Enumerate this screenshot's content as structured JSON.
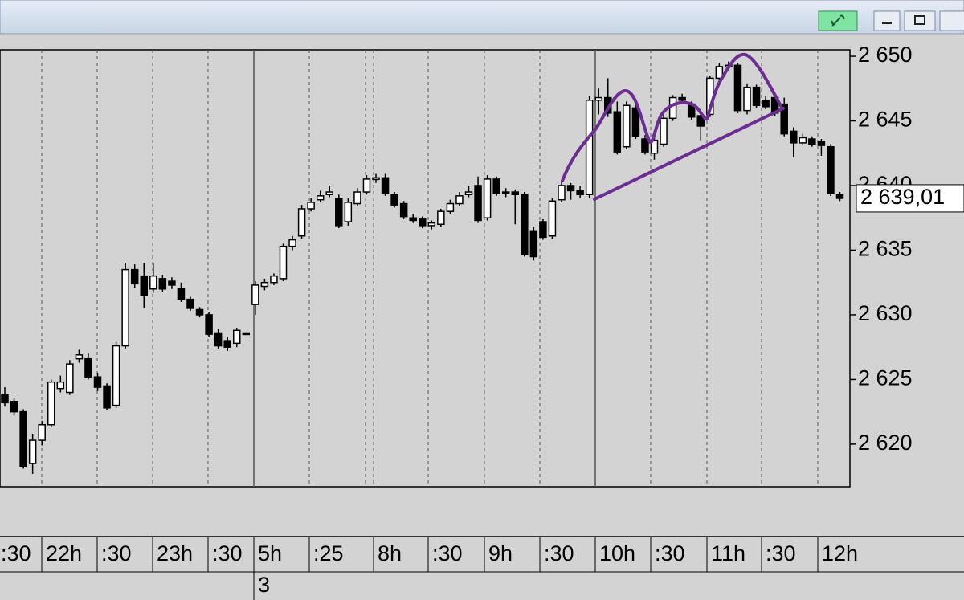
{
  "chart_data": {
    "type": "candlestick",
    "open": [
      2623.8,
      2623.3,
      2622.5,
      2618.5,
      2620.3,
      2621.5,
      2624.3,
      2624.0,
      2626.6,
      2626.6,
      2625.2,
      2624.5,
      2623.0,
      2627.6,
      2633.5,
      2633.0,
      2632.0,
      2632.8,
      2632.6,
      2632.0,
      2631.2,
      2630.4,
      2630.0,
      2628.6,
      2628.0,
      2627.8,
      2628.6,
      2630.8,
      2632.2,
      2632.5,
      2632.8,
      2635.3,
      2636.1,
      2638.2,
      2638.9,
      2639.3,
      2639.0,
      2637.2,
      2638.6,
      2639.5,
      2640.5,
      2640.6,
      2639.3,
      2638.6,
      2637.5,
      2637.4,
      2636.9,
      2637.0,
      2638.0,
      2638.6,
      2639.3,
      2640.0,
      2637.5,
      2640.5,
      2639.5,
      2639.5,
      2639.3,
      2636.5,
      2637.2,
      2636.1,
      2638.9,
      2640.0,
      2639.6,
      2639.3,
      2646.6,
      2646.8,
      2645.7,
      2643.0,
      2646.0,
      2643.6,
      2642.5,
      2643.2,
      2645.2,
      2646.8,
      2646.3,
      2645.4,
      2645.5,
      2648.3,
      2649.2,
      2649.3,
      2645.8,
      2647.6,
      2646.6,
      2646.8,
      2646.3,
      2644.2,
      2643.3,
      2643.6,
      2643.4,
      2643.0,
      2639.3
    ],
    "high": [
      2624.4,
      2623.6,
      2622.7,
      2620.8,
      2621.8,
      2625.0,
      2625.3,
      2626.5,
      2627.3,
      2627.0,
      2625.5,
      2624.7,
      2627.9,
      2634.0,
      2633.9,
      2634.0,
      2634.0,
      2633.1,
      2632.9,
      2632.5,
      2631.4,
      2630.6,
      2630.2,
      2628.9,
      2628.3,
      2629.0,
      2628.6,
      2632.6,
      2632.8,
      2633.2,
      2635.5,
      2636.1,
      2638.5,
      2639.0,
      2639.6,
      2640.0,
      2639.3,
      2639.0,
      2639.8,
      2640.8,
      2640.9,
      2640.9,
      2639.5,
      2638.8,
      2637.8,
      2637.6,
      2637.3,
      2638.2,
      2638.9,
      2639.5,
      2640.0,
      2640.7,
      2640.8,
      2640.7,
      2639.8,
      2639.7,
      2639.5,
      2636.8,
      2637.4,
      2639.0,
      2640.3,
      2640.2,
      2640.0,
      2646.9,
      2647.5,
      2648.3,
      2646.5,
      2646.5,
      2646.3,
      2643.9,
      2643.7,
      2645.5,
      2647.0,
      2647.1,
      2646.5,
      2645.6,
      2648.5,
      2649.5,
      2649.6,
      2649.5,
      2647.9,
      2647.8,
      2646.9,
      2647.0,
      2646.8,
      2644.5,
      2644.0,
      2643.8,
      2643.6,
      2643.2,
      2639.5
    ],
    "low": [
      2622.9,
      2622.2,
      2618.1,
      2617.7,
      2619.9,
      2621.3,
      2624.0,
      2623.8,
      2626.3,
      2625.0,
      2624.1,
      2622.6,
      2622.8,
      2627.4,
      2632.1,
      2630.5,
      2631.7,
      2631.8,
      2632.0,
      2631.0,
      2630.3,
      2629.8,
      2628.3,
      2627.4,
      2627.2,
      2627.5,
      2628.6,
      2630.0,
      2631.9,
      2632.3,
      2632.6,
      2635.0,
      2635.9,
      2638.0,
      2638.7,
      2639.1,
      2636.7,
      2636.9,
      2638.4,
      2639.3,
      2640.2,
      2639.2,
      2638.3,
      2637.4,
      2637.1,
      2636.7,
      2636.6,
      2636.8,
      2637.8,
      2638.4,
      2639.1,
      2637.1,
      2637.3,
      2639.2,
      2639.1,
      2637.0,
      2634.5,
      2634.2,
      2635.8,
      2635.9,
      2638.7,
      2638.9,
      2639.0,
      2639.0,
      2645.5,
      2645.3,
      2642.4,
      2642.8,
      2643.6,
      2642.4,
      2642.0,
      2643.0,
      2645.0,
      2646.3,
      2645.1,
      2643.5,
      2645.3,
      2648.0,
      2649.0,
      2645.6,
      2645.5,
      2646.0,
      2645.9,
      2645.4,
      2643.8,
      2642.2,
      2643.1,
      2643.0,
      2642.3,
      2639.2,
      2638.8
    ],
    "close": [
      2623.2,
      2622.5,
      2618.3,
      2620.3,
      2621.5,
      2624.8,
      2624.8,
      2626.2,
      2626.9,
      2625.2,
      2624.4,
      2622.8,
      2627.6,
      2633.5,
      2632.4,
      2631.5,
      2633.0,
      2632.0,
      2632.3,
      2631.2,
      2630.5,
      2630.0,
      2628.5,
      2627.6,
      2627.5,
      2628.8,
      2628.6,
      2632.3,
      2632.5,
      2633.0,
      2635.3,
      2635.8,
      2638.2,
      2638.7,
      2639.2,
      2639.5,
      2636.9,
      2638.7,
      2639.5,
      2640.5,
      2640.6,
      2639.4,
      2638.5,
      2637.6,
      2637.3,
      2636.9,
      2637.1,
      2638.0,
      2638.6,
      2639.2,
      2639.5,
      2637.3,
      2640.5,
      2639.4,
      2639.4,
      2639.3,
      2634.7,
      2634.5,
      2636.0,
      2638.8,
      2640.0,
      2639.6,
      2639.3,
      2646.6,
      2646.8,
      2645.6,
      2642.6,
      2646.2,
      2643.8,
      2642.6,
      2643.5,
      2645.2,
      2646.8,
      2646.6,
      2645.3,
      2644.6,
      2648.3,
      2649.2,
      2649.3,
      2645.8,
      2647.6,
      2646.2,
      2646.1,
      2645.6,
      2644.0,
      2643.3,
      2643.7,
      2643.2,
      2643.1,
      2639.4,
      2639.01
    ],
    "ylim": [
      2616.7,
      2650.5
    ],
    "yticks": [
      {
        "value": 2620,
        "label": "2 620"
      },
      {
        "value": 2625,
        "label": "2 625"
      },
      {
        "value": 2630,
        "label": "2 630"
      },
      {
        "value": 2635,
        "label": "2 635"
      },
      {
        "value": 2640,
        "label": "2 640"
      },
      {
        "value": 2645,
        "label": "2 645"
      },
      {
        "value": 2650,
        "label": "2 650"
      }
    ],
    "last_price": {
      "value": 2639.01,
      "label": "2 639,01"
    },
    "xticks": [
      ":30",
      "22h",
      ":30",
      "23h",
      ":30",
      "5h",
      ":25",
      "8h",
      ":30",
      "9h",
      ":30",
      "10h",
      ":30",
      "11h",
      ":30",
      "12h"
    ],
    "date_label": "3",
    "grid": true,
    "up_color": "#ffffff",
    "down_color": "#000000"
  }
}
